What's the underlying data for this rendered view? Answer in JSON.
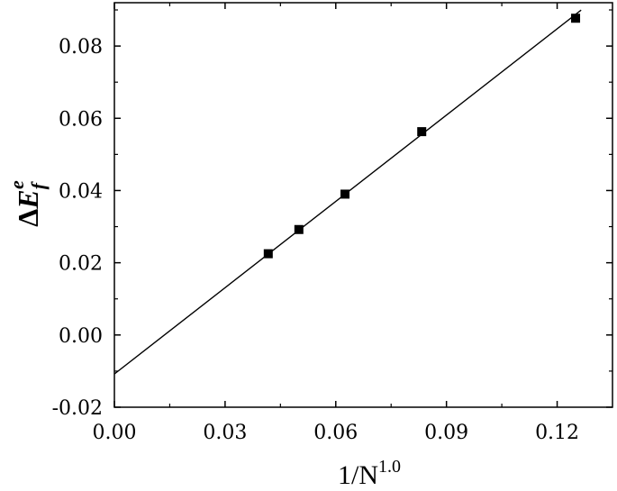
{
  "chart_data": {
    "type": "scatter",
    "title": "",
    "xlim": [
      0.0,
      0.135
    ],
    "ylim": [
      -0.02,
      0.092
    ],
    "x_ticks": [
      "0.00",
      "0.03",
      "0.06",
      "0.09",
      "0.12"
    ],
    "y_ticks": [
      "-0.02",
      "0.00",
      "0.02",
      "0.04",
      "0.06",
      "0.08"
    ],
    "xlabel": {
      "base": "1/N",
      "sup": "1.0"
    },
    "ylabel": {
      "delta": "Δ",
      "base": "E",
      "sub": "f",
      "sup": "e"
    },
    "grid": false,
    "legend": "none",
    "series": [
      {
        "marker": "square",
        "color": "#000000",
        "points": [
          {
            "x": 0.0417,
            "y": 0.0225
          },
          {
            "x": 0.05,
            "y": 0.0292
          },
          {
            "x": 0.0625,
            "y": 0.039
          },
          {
            "x": 0.0833,
            "y": 0.0563
          },
          {
            "x": 0.125,
            "y": 0.0877
          }
        ]
      }
    ],
    "fit_line": {
      "color": "#000000",
      "x_range": [
        0.0,
        0.1265
      ],
      "intercept": -0.0108,
      "slope": 0.7965
    }
  }
}
